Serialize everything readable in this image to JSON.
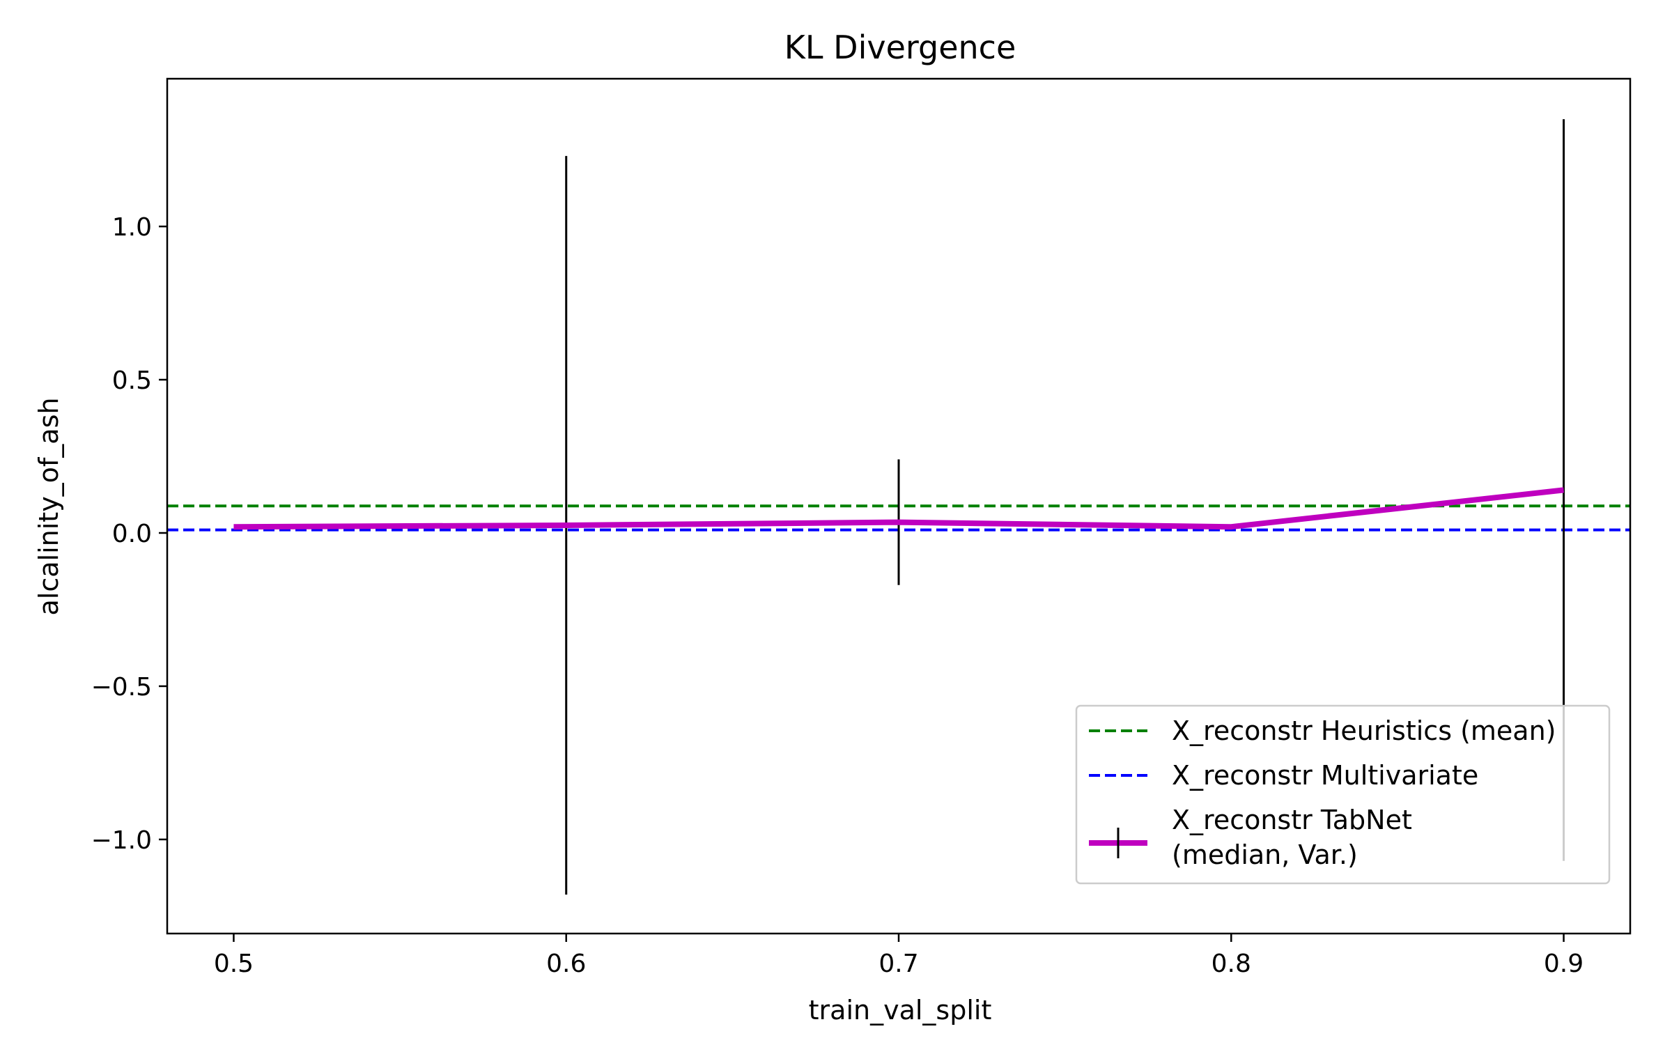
{
  "chart_data": {
    "type": "line",
    "title": "KL Divergence",
    "xlabel": "train_val_split",
    "ylabel": "alcalinity_of_ash",
    "xlim": [
      0.48,
      0.92
    ],
    "ylim": [
      -1.307,
      1.482
    ],
    "xticks": [
      0.5,
      0.6,
      0.7,
      0.8,
      0.9
    ],
    "xtick_labels": [
      "0.5",
      "0.6",
      "0.7",
      "0.8",
      "0.9"
    ],
    "yticks": [
      -1.0,
      -0.5,
      0.0,
      0.5,
      1.0
    ],
    "ytick_labels": [
      "−1.0",
      "−0.5",
      "0.0",
      "0.5",
      "1.0"
    ],
    "grid": false,
    "legend_position": "lower-right",
    "hlines": [
      {
        "name": "X_reconstr Heuristics (mean)",
        "y": 0.088,
        "color": "#008000",
        "style": "dashed"
      },
      {
        "name": "X_reconstr Multivariate",
        "y": 0.01,
        "color": "#0000ff",
        "style": "dashed"
      }
    ],
    "series": [
      {
        "name": "X_reconstr TabNet\n(median, Var.)",
        "color": "#bf00bf",
        "errorbar_color": "#000000",
        "x": [
          0.5,
          0.6,
          0.7,
          0.8,
          0.9
        ],
        "y": [
          0.02,
          0.025,
          0.035,
          0.02,
          0.14
        ],
        "err_low": [
          0.02,
          -1.18,
          -0.17,
          0.02,
          -1.07
        ],
        "err_high": [
          0.02,
          1.23,
          0.24,
          0.02,
          1.35
        ]
      }
    ]
  }
}
